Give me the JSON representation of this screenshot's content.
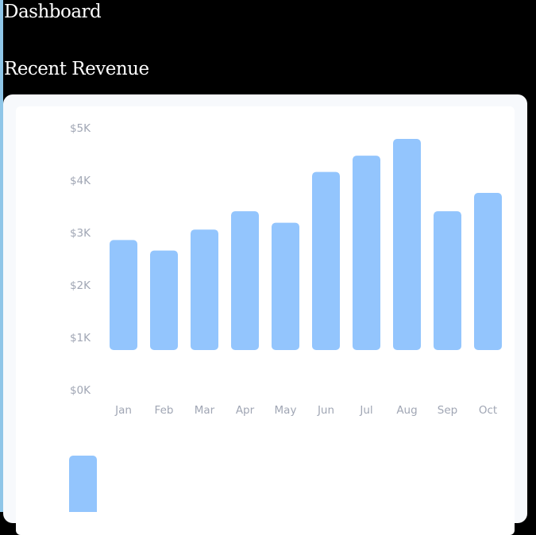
{
  "header": {
    "title": "Dashboard"
  },
  "section": {
    "title": "Recent Revenue"
  },
  "colors": {
    "bar": "#93c5fd",
    "axis_text": "#a0a6b4",
    "card_bg": "#f7f9fc",
    "page_bg": "#000000"
  },
  "chart_data": [
    {
      "type": "bar",
      "categories": [
        "Jan",
        "Feb",
        "Mar",
        "Apr",
        "May",
        "Jun",
        "Jul",
        "Aug",
        "Sep",
        "Oct"
      ],
      "series": [
        {
          "values": [
            2100,
            1900,
            2300,
            2650,
            2430,
            3400,
            3710,
            4030,
            2650,
            3000
          ]
        }
      ],
      "y_ticks": [
        "$0K",
        "$1K",
        "$2K",
        "$3K",
        "$4K",
        "$5K"
      ],
      "ylim": [
        0,
        5000
      ],
      "grid": false,
      "legend": "none"
    },
    {
      "type": "bar",
      "note_visible": "second chart partially visible (clipped at bottom)",
      "series": [
        {
          "values": []
        }
      ]
    }
  ]
}
